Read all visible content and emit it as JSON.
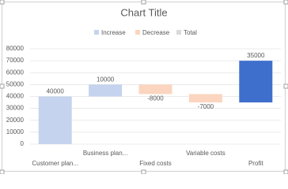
{
  "chart_data": {
    "type": "waterfall",
    "title": "Chart Title",
    "legend": [
      {
        "name": "Increase",
        "color": "#c5d3ee"
      },
      {
        "name": "Decrease",
        "color": "#fbd5c0"
      },
      {
        "name": "Total",
        "color": "#dadada"
      }
    ],
    "categories": [
      "Customer plan...",
      "Business plan...",
      "Fixed costs",
      "Variable costs",
      "Profit"
    ],
    "values": [
      40000,
      10000,
      -8000,
      -7000,
      35000
    ],
    "colors": [
      "#c5d3ee",
      "#c5d3ee",
      "#fbd5c0",
      "#fbd5c0",
      "#3f6fcd"
    ],
    "ylim": [
      0,
      80000
    ],
    "yticks": [
      0,
      10000,
      20000,
      30000,
      40000,
      50000,
      60000,
      70000,
      80000
    ],
    "grid": true
  }
}
